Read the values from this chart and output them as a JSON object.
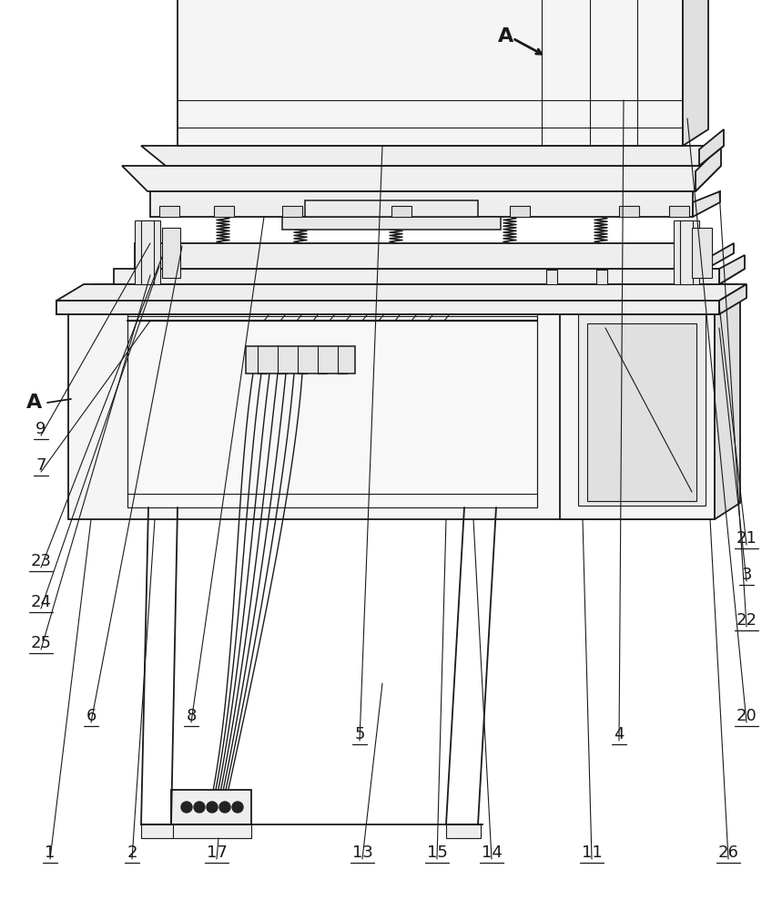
{
  "bg_color": "#ffffff",
  "lc": "#1a1a1a",
  "lw": 1.3,
  "tlw": 0.8,
  "fs": 13
}
